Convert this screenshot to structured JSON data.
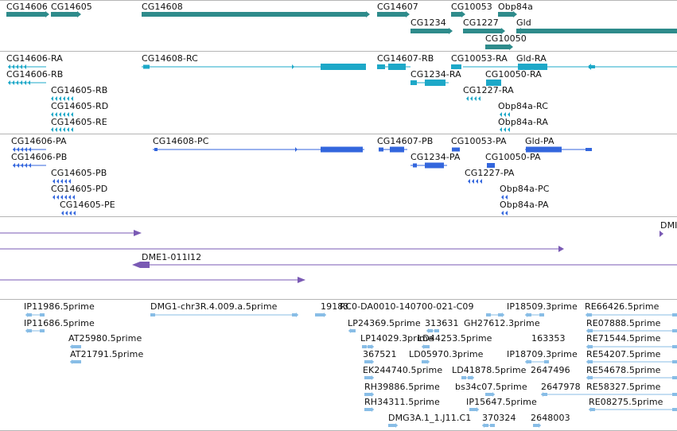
{
  "colors": {
    "gene": "#2e8b8b",
    "mrna": "#1da8c8",
    "protein": "#3366dd",
    "clone": "#7a5ab4",
    "est": "#88bde6",
    "separator": "#b5b5b5",
    "text": "#111111"
  },
  "tracks": [
    {
      "name": "gene-track",
      "color": "gene",
      "labels": [
        "CG14606",
        "CG14605",
        "CG14608",
        "CG14607",
        "CG10053",
        "Obp84a",
        "CG1234",
        "CG1227",
        "Gld",
        "CG10050"
      ]
    },
    {
      "name": "transcript-track",
      "color": "mrna",
      "labels": [
        "CG14606-RA",
        "CG14606-RB",
        "CG14605-RB",
        "CG14605-RD",
        "CG14605-RE",
        "CG14608-RC",
        "CG14607-RB",
        "CG10053-RA",
        "Gld-RA",
        "CG1234-RA",
        "CG10050-RA",
        "CG1227-RA",
        "Obp84a-RC",
        "Obp84a-RA"
      ]
    },
    {
      "name": "protein-track",
      "color": "protein",
      "labels": [
        "CG14606-PA",
        "CG14606-PB",
        "CG14605-PB",
        "CG14605-PD",
        "CG14605-PE",
        "CG14608-PC",
        "CG14607-PB",
        "CG10053-PA",
        "Gld-PA",
        "CG1234-PA",
        "CG10050-PA",
        "CG1227-PA",
        "Obp84a-PC",
        "Obp84a-PA"
      ]
    },
    {
      "name": "clone-track",
      "color": "clone",
      "labels": [
        "DMI",
        "DME1-011I12"
      ]
    },
    {
      "name": "est-track",
      "color": "est",
      "labels": [
        "IP11986.5prime",
        "IP11686.5prime",
        "AT25980.5prime",
        "AT21791.5prime",
        "DMG1-chr3R.4.009.a.5prime",
        "19183",
        "RC0-DA0010-140700-021-C09",
        "IP18509.3prime",
        "RE66426.5prime",
        "LP24369.5prime",
        "313631",
        "GH27612.3prime",
        "RE07888.5prime",
        "LP14029.3prime",
        "LD44253.5prime",
        "163353",
        "RE71544.5prime",
        "367521",
        "LD05970.3prime",
        "IP18709.3prime",
        "RE54207.5prime",
        "EK244740.5prime",
        "LD41878.5prime",
        "2647496",
        "RE54678.5prime",
        "RH39886.5prime",
        "bs34c07.5prime",
        "2647978",
        "RE58327.5prime",
        "RH34311.5prime",
        "IP15647.5prime",
        "RE08275.5prime",
        "DMG3A.1_1.J11.C1",
        "370324",
        "2648003"
      ]
    }
  ]
}
